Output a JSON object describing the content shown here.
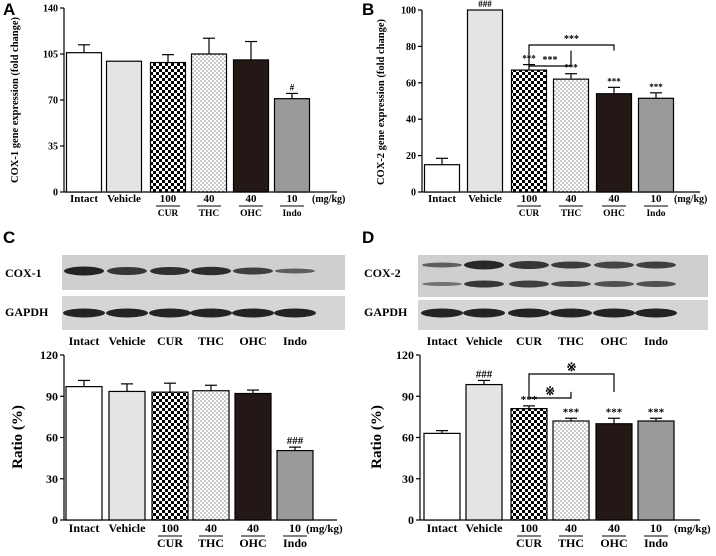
{
  "panel_labels": {
    "a": "A",
    "b": "B",
    "c": "C",
    "d": "D"
  },
  "blot_c": {
    "rows": [
      "COX-1",
      "GAPDH"
    ],
    "lanes": [
      "Intact",
      "Vehicle",
      "CUR",
      "THC",
      "OHC",
      "Indo"
    ]
  },
  "blot_d": {
    "rows": [
      "COX-2",
      "GAPDH"
    ],
    "lanes": [
      "Intact",
      "Vehicle",
      "CUR",
      "THC",
      "OHC",
      "Indo"
    ]
  },
  "chart_data": [
    {
      "id": "A",
      "type": "bar",
      "categories": [
        "Intact",
        "Vehicle",
        "CUR",
        "THC",
        "OHC",
        "Indo"
      ],
      "doses": [
        "",
        "",
        "100",
        "40",
        "40",
        "10"
      ],
      "dose_unit": "(mg/kg)",
      "values": [
        106,
        99.5,
        98.5,
        105,
        100.5,
        71
      ],
      "errors": [
        6,
        0,
        6,
        12,
        14,
        4
      ],
      "significance": [
        "",
        "",
        "",
        "",
        "",
        "#"
      ],
      "ylabel": "COX-1 gene expression (fold change)",
      "ylim": [
        0,
        140
      ],
      "yticks": [
        0,
        35,
        70,
        105,
        140
      ],
      "brackets": []
    },
    {
      "id": "B",
      "type": "bar",
      "categories": [
        "Intact",
        "Vehicle",
        "CUR",
        "THC",
        "OHC",
        "Indo"
      ],
      "doses": [
        "",
        "",
        "100",
        "40",
        "40",
        "10"
      ],
      "dose_unit": "(mg/kg)",
      "values": [
        15,
        100,
        67,
        62,
        54,
        51.5
      ],
      "errors": [
        3.5,
        0,
        3,
        3,
        3.5,
        3
      ],
      "significance": [
        "",
        "###",
        "***",
        "***",
        "***",
        "***"
      ],
      "ylabel": "COX-2 gene expression (fold change)",
      "ylim": [
        0,
        100
      ],
      "yticks": [
        0,
        20,
        40,
        60,
        80,
        100
      ],
      "brackets": [
        {
          "from": 2,
          "to": 4,
          "label": "***"
        },
        {
          "from": 2,
          "to": 3,
          "label": "***"
        }
      ]
    },
    {
      "id": "C",
      "type": "bar",
      "categories": [
        "Intact",
        "Vehicle",
        "CUR",
        "THC",
        "OHC",
        "Indo"
      ],
      "doses": [
        "",
        "",
        "100",
        "40",
        "40",
        "10"
      ],
      "dose_unit": "(mg/kg)",
      "values": [
        97,
        93.5,
        93,
        94,
        92,
        50.5
      ],
      "errors": [
        4.5,
        5.5,
        6.5,
        4,
        2.5,
        2.5
      ],
      "significance": [
        "",
        "",
        "",
        "",
        "",
        "###"
      ],
      "ylabel": "Ratio (%)",
      "ylim": [
        0,
        120
      ],
      "yticks": [
        0,
        30,
        60,
        90,
        120
      ],
      "brackets": []
    },
    {
      "id": "D",
      "type": "bar",
      "categories": [
        "Intact",
        "Vehicle",
        "CUR",
        "THC",
        "OHC",
        "Indo"
      ],
      "doses": [
        "",
        "",
        "100",
        "40",
        "40",
        "10"
      ],
      "dose_unit": "(mg/kg)",
      "values": [
        63,
        98.5,
        81,
        72,
        70,
        72
      ],
      "errors": [
        2,
        3,
        2,
        2,
        4,
        2
      ],
      "significance": [
        "",
        "###",
        "***",
        "***",
        "***",
        "***"
      ],
      "ylabel": "Ratio (%)",
      "ylim": [
        0,
        120
      ],
      "yticks": [
        0,
        30,
        60,
        90,
        120
      ],
      "brackets": [
        {
          "from": 2,
          "to": 4,
          "label": "※"
        },
        {
          "from": 2,
          "to": 3,
          "label": "※"
        }
      ]
    }
  ]
}
